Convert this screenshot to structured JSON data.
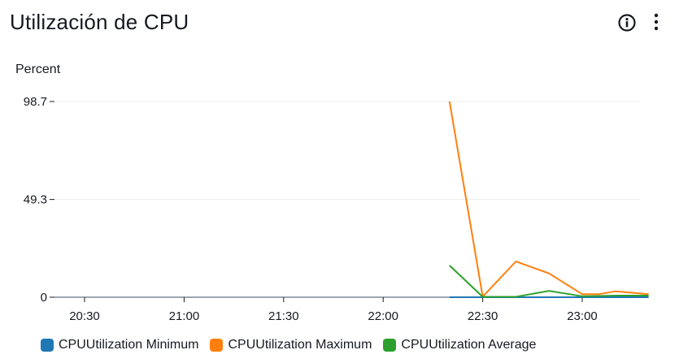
{
  "widget": {
    "title": "Utilización de CPU",
    "unit_label": "Percent",
    "info_icon": "info-circle-icon",
    "menu_icon": "vertical-ellipsis-icon"
  },
  "chart_data": {
    "type": "line",
    "ylabel": "Percent",
    "y_ticks": [
      "98.7",
      "49.3",
      "0"
    ],
    "ylim": [
      0,
      98.7
    ],
    "x_tick_labels": [
      "20:30",
      "21:00",
      "21:30",
      "22:00",
      "22:30",
      "23:00"
    ],
    "x_ticks_minutes": [
      1230,
      1260,
      1290,
      1320,
      1350,
      1380
    ],
    "xlim_minutes": [
      1210,
      1405
    ],
    "grid": true,
    "legend_position": "bottom",
    "x_minutes": [
      1340,
      1350,
      1360,
      1370,
      1380,
      1385,
      1390,
      1400
    ],
    "series": [
      {
        "name": "CPUUtilization Minimum",
        "color": "#1f77b4",
        "values": [
          0,
          0,
          0,
          0,
          0,
          0,
          0,
          0
        ]
      },
      {
        "name": "CPUUtilization Maximum",
        "color": "#ff7f0e",
        "values": [
          98.7,
          0.3,
          18,
          12,
          1.5,
          1.5,
          3,
          1.5
        ]
      },
      {
        "name": "CPUUtilization Average",
        "color": "#2ca02c",
        "values": [
          16,
          0.2,
          0.2,
          3.2,
          0.5,
          0.6,
          0.8,
          0.8
        ]
      }
    ]
  }
}
